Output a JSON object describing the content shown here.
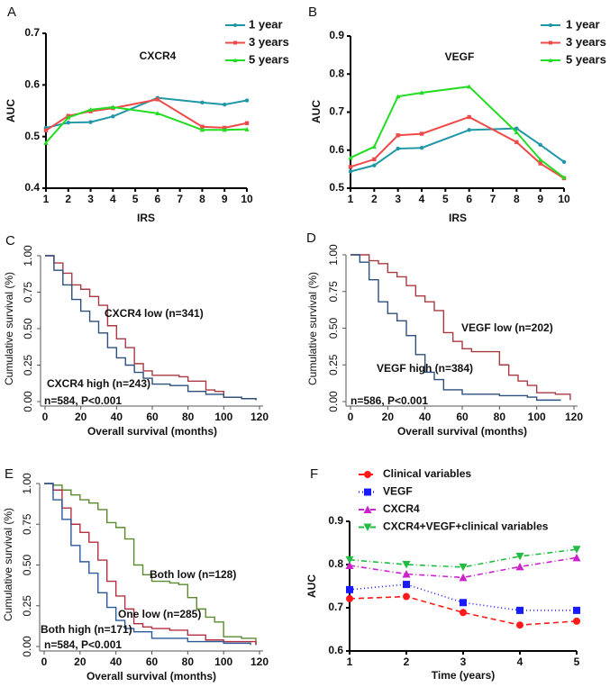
{
  "chart_data": [
    {
      "panel": "A",
      "type": "line",
      "title": "CXCR4",
      "xlabel": "IRS",
      "ylabel": "AUC",
      "x": [
        1,
        2,
        3,
        4,
        6,
        8,
        9,
        10
      ],
      "xticks": [
        "1",
        "2",
        "3",
        "4",
        "5",
        "6",
        "7",
        "8",
        "9",
        "10"
      ],
      "xlim": [
        1,
        10
      ],
      "ylim": [
        0.4,
        0.7
      ],
      "yticks": [
        "0.4",
        "0.5",
        "0.6",
        "0.7"
      ],
      "legend": "top-right",
      "series": [
        {
          "name": "1 year",
          "color": "#1f97a6",
          "marker": "dot",
          "values": [
            0.517,
            0.527,
            0.528,
            0.539,
            0.575,
            0.566,
            0.562,
            0.57
          ]
        },
        {
          "name": "3 years",
          "color": "#ee4a4a",
          "marker": "square",
          "values": [
            0.512,
            0.54,
            0.549,
            0.555,
            0.572,
            0.519,
            0.517,
            0.526
          ]
        },
        {
          "name": "5 years",
          "color": "#22dd22",
          "marker": "triangle",
          "values": [
            0.488,
            0.537,
            0.552,
            0.557,
            0.545,
            0.513,
            0.513,
            0.514
          ]
        }
      ]
    },
    {
      "panel": "B",
      "type": "line",
      "title": "VEGF",
      "xlabel": "IRS",
      "ylabel": "AUC",
      "x": [
        1,
        2,
        3,
        4,
        6,
        8,
        9,
        10
      ],
      "xticks": [
        "1",
        "2",
        "3",
        "4",
        "5",
        "6",
        "7",
        "8",
        "9",
        "10"
      ],
      "xlim": [
        1,
        10
      ],
      "ylim": [
        0.5,
        0.9
      ],
      "yticks": [
        "0.5",
        "0.6",
        "0.7",
        "0.8",
        "0.9"
      ],
      "legend": "top-right",
      "series": [
        {
          "name": "1 year",
          "color": "#1f97a6",
          "marker": "dot",
          "values": [
            0.544,
            0.56,
            0.604,
            0.606,
            0.653,
            0.657,
            0.614,
            0.569
          ]
        },
        {
          "name": "3 years",
          "color": "#ee4a4a",
          "marker": "square",
          "values": [
            0.556,
            0.576,
            0.639,
            0.643,
            0.687,
            0.621,
            0.565,
            0.526
          ]
        },
        {
          "name": "5 years",
          "color": "#22dd22",
          "marker": "triangle",
          "values": [
            0.58,
            0.609,
            0.741,
            0.751,
            0.767,
            0.647,
            0.575,
            0.528
          ]
        }
      ]
    },
    {
      "panel": "C",
      "type": "line",
      "xlabel": "Overall survival (months)",
      "ylabel": "Cumulative survival (%)",
      "xlim": [
        0,
        120
      ],
      "xticks": [
        "0",
        "20",
        "40",
        "60",
        "80",
        "100",
        "120"
      ],
      "ylim": [
        0,
        1
      ],
      "yticks": [
        "0.00",
        "0.25",
        "0.50",
        "0.75",
        "1.00"
      ],
      "annotation": "n=584, P<0.001",
      "series": [
        {
          "name": "CXCR4 low (n=341)",
          "color": "#a83a42",
          "time": [
            0,
            5,
            10,
            15,
            20,
            25,
            30,
            35,
            40,
            45,
            50,
            55,
            60,
            70,
            75,
            80,
            90,
            95,
            100,
            110,
            118
          ],
          "values": [
            1,
            0.95,
            0.88,
            0.8,
            0.77,
            0.72,
            0.66,
            0.52,
            0.43,
            0.37,
            0.26,
            0.21,
            0.18,
            0.18,
            0.17,
            0.14,
            0.08,
            0.07,
            0.03,
            0.02,
            0.01
          ]
        },
        {
          "name": "CXCR4 high (n=243)",
          "color": "#2c4f7c",
          "time": [
            0,
            5,
            10,
            15,
            20,
            25,
            30,
            35,
            40,
            45,
            50,
            55,
            60,
            70,
            80,
            90,
            100,
            110,
            118
          ],
          "values": [
            1,
            0.9,
            0.8,
            0.7,
            0.62,
            0.55,
            0.47,
            0.37,
            0.3,
            0.25,
            0.2,
            0.16,
            0.12,
            0.11,
            0.07,
            0.05,
            0.03,
            0.02,
            0.01
          ]
        }
      ]
    },
    {
      "panel": "D",
      "type": "line",
      "xlabel": "Overall survival (months)",
      "ylabel": "Cumulative survival (%)",
      "xlim": [
        0,
        120
      ],
      "xticks": [
        "0",
        "20",
        "40",
        "60",
        "80",
        "100",
        "120"
      ],
      "ylim": [
        0,
        1
      ],
      "yticks": [
        "0.00",
        "0.25",
        "0.50",
        "0.75",
        "1.00"
      ],
      "annotation": "n=586, P<0.001",
      "series": [
        {
          "name": "VEGF low (n=202)",
          "color": "#a83a42",
          "time": [
            0,
            10,
            15,
            20,
            25,
            30,
            35,
            40,
            45,
            50,
            55,
            60,
            65,
            75,
            80,
            85,
            90,
            95,
            100,
            110,
            118
          ],
          "values": [
            1,
            0.96,
            0.94,
            0.88,
            0.85,
            0.79,
            0.72,
            0.68,
            0.62,
            0.47,
            0.41,
            0.36,
            0.34,
            0.34,
            0.25,
            0.18,
            0.14,
            0.11,
            0.06,
            0.05,
            0.01
          ]
        },
        {
          "name": "VEGF high (n=384)",
          "color": "#2c4f7c",
          "time": [
            0,
            5,
            10,
            15,
            20,
            25,
            30,
            35,
            40,
            45,
            50,
            60,
            80,
            95,
            100,
            113
          ],
          "values": [
            1,
            0.95,
            0.83,
            0.68,
            0.6,
            0.55,
            0.45,
            0.32,
            0.2,
            0.15,
            0.08,
            0.05,
            0.04,
            0.03,
            0.01,
            0.01
          ]
        }
      ]
    },
    {
      "panel": "E",
      "type": "line",
      "xlabel": "Overall survival (months)",
      "ylabel": "Cumulative survival (%)",
      "xlim": [
        0,
        120
      ],
      "xticks": [
        "0",
        "20",
        "40",
        "60",
        "80",
        "100",
        "120"
      ],
      "ylim": [
        0,
        1
      ],
      "yticks": [
        "0.00",
        "0.25",
        "0.50",
        "0.75",
        "1.00"
      ],
      "annotation": "n=584, P<0.001",
      "series": [
        {
          "name": "Both low (n=128)",
          "color": "#5a8a2c",
          "time": [
            0,
            5,
            10,
            15,
            20,
            25,
            30,
            35,
            40,
            45,
            50,
            55,
            60,
            70,
            75,
            80,
            85,
            90,
            95,
            100,
            110,
            118
          ],
          "values": [
            1,
            0.99,
            0.96,
            0.93,
            0.9,
            0.88,
            0.84,
            0.76,
            0.73,
            0.66,
            0.5,
            0.44,
            0.4,
            0.39,
            0.38,
            0.3,
            0.23,
            0.18,
            0.15,
            0.06,
            0.05,
            0.01
          ]
        },
        {
          "name": "One low (n=285)",
          "color": "#b33040",
          "time": [
            0,
            5,
            10,
            15,
            20,
            25,
            30,
            35,
            40,
            45,
            50,
            55,
            60,
            70,
            80,
            90,
            100,
            118
          ],
          "values": [
            1,
            0.96,
            0.85,
            0.75,
            0.7,
            0.64,
            0.53,
            0.4,
            0.31,
            0.23,
            0.14,
            0.12,
            0.11,
            0.1,
            0.07,
            0.04,
            0.03,
            0.01
          ]
        },
        {
          "name": "Both high (n=171)",
          "color": "#2a5a9a",
          "time": [
            0,
            5,
            10,
            15,
            20,
            25,
            30,
            35,
            40,
            45,
            50,
            60,
            80,
            100,
            115
          ],
          "values": [
            1,
            0.9,
            0.78,
            0.62,
            0.52,
            0.45,
            0.33,
            0.24,
            0.16,
            0.11,
            0.09,
            0.05,
            0.03,
            0.02,
            0.01
          ]
        }
      ]
    },
    {
      "panel": "F",
      "type": "line",
      "xlabel": "Time (years)",
      "ylabel": "AUC",
      "x": [
        1,
        2,
        3,
        4,
        5
      ],
      "xlim": [
        1,
        5
      ],
      "xticks": [
        "1",
        "2",
        "3",
        "4",
        "5"
      ],
      "ylim": [
        0.6,
        0.9
      ],
      "yticks": [
        "0.6",
        "0.7",
        "0.8",
        "0.9"
      ],
      "legend": "top",
      "series": [
        {
          "name": "Clinical variables",
          "color": "#ff1a1a",
          "marker": "dot",
          "dash": "6,4",
          "values": [
            0.721,
            0.726,
            0.689,
            0.66,
            0.669
          ]
        },
        {
          "name": "VEGF",
          "color": "#1a1aff",
          "marker": "square",
          "dash": "1,3",
          "values": [
            0.742,
            0.754,
            0.712,
            0.694,
            0.694
          ]
        },
        {
          "name": "CXCR4",
          "color": "#cc22cc",
          "marker": "triangle",
          "dash": "6,3,1,3",
          "values": [
            0.798,
            0.778,
            0.77,
            0.795,
            0.816
          ]
        },
        {
          "name": "CXCR4+VEGF+clinical variables",
          "color": "#22bb44",
          "marker": "triangle-down",
          "dash": "6,3,1,3",
          "values": [
            0.811,
            0.8,
            0.794,
            0.819,
            0.835
          ]
        }
      ]
    }
  ]
}
